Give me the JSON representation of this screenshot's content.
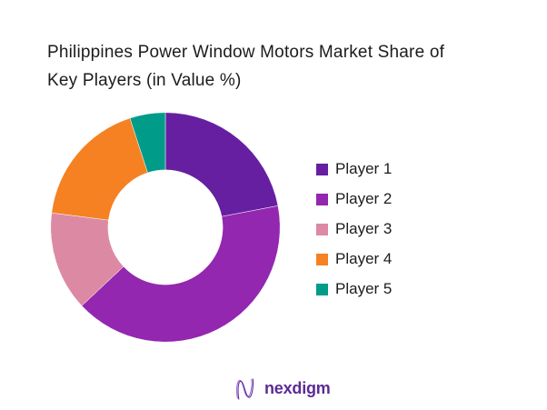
{
  "page": {
    "background": "#ffffff"
  },
  "header": {
    "title_line1": "Philippines Power Window Motors Market Share of",
    "title_line2": "Key Players (in Value %)"
  },
  "chart_data": {
    "type": "pie",
    "subtype": "donut",
    "title": "Philippines Power Window Motors Market Share of Key Players (in Value %)",
    "labels": [
      "Player 1",
      "Player 2",
      "Player 3",
      "Player 4",
      "Player 5"
    ],
    "values": [
      22,
      41,
      14,
      18,
      5
    ],
    "unit": "%",
    "colors": [
      "#661FA0",
      "#9327B0",
      "#DC8AA3",
      "#F58122",
      "#019B8A"
    ],
    "start_angle_deg": 0,
    "direction": "clockwise",
    "inner_radius_ratio": 0.5,
    "legend_position": "right",
    "data_labels_shown": false
  },
  "footer": {
    "logo_text": "nexdigm",
    "logo_color": "#5C2B94"
  }
}
